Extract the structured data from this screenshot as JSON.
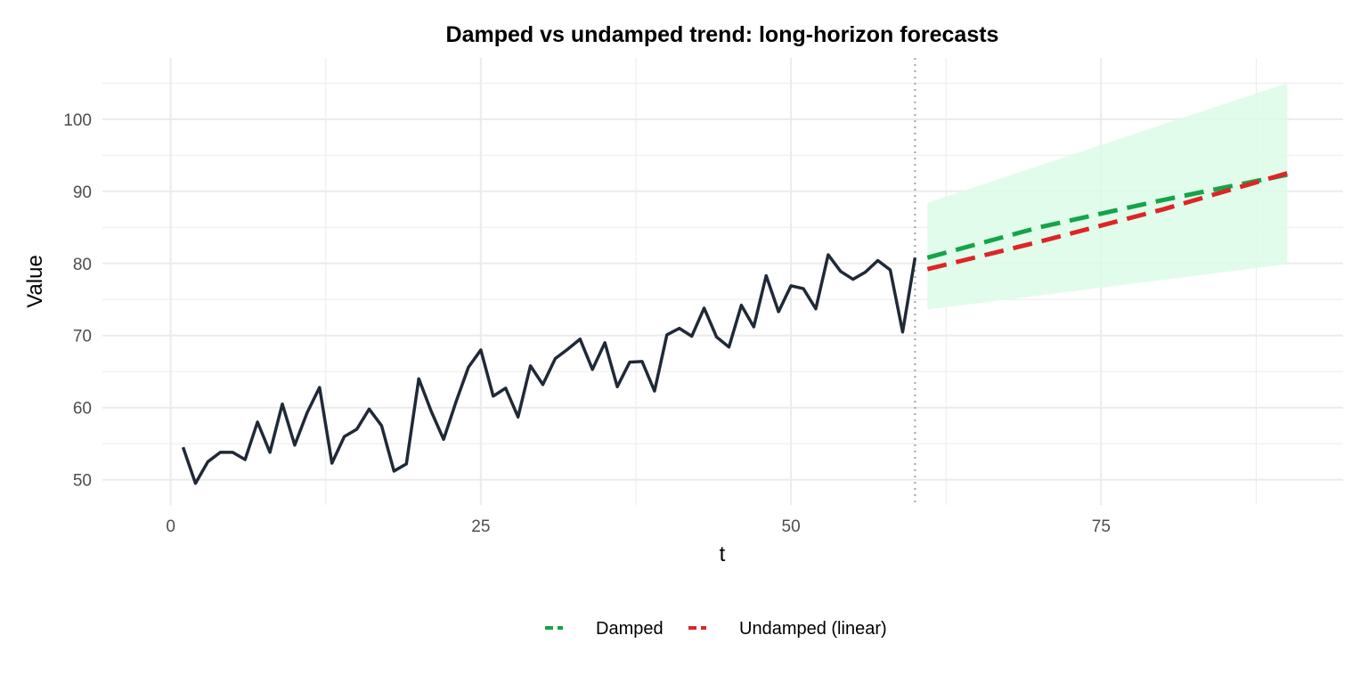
{
  "chart_data": {
    "type": "line",
    "title": "Damped vs undamped trend: long-horizon forecasts",
    "xlabel": "t",
    "ylabel": "Value",
    "xlim": [
      -5.5,
      94.5
    ],
    "ylim": [
      46.5,
      108.5
    ],
    "x_ticks": [
      0,
      25,
      50,
      75
    ],
    "y_ticks": [
      50,
      60,
      70,
      80,
      90,
      100
    ],
    "grid": true,
    "forecast_origin": 60,
    "legend_position": "bottom",
    "colors": {
      "history": "#1f2937",
      "damped": "#16a34a",
      "undamped": "#dc2626",
      "band": "#dcfce7",
      "grid": "#ebebeb",
      "vline": "#9ca3af"
    },
    "history": {
      "x": [
        1,
        2,
        3,
        4,
        5,
        6,
        7,
        8,
        9,
        10,
        11,
        12,
        13,
        14,
        15,
        16,
        17,
        18,
        19,
        20,
        21,
        22,
        23,
        24,
        25,
        26,
        27,
        28,
        29,
        30,
        31,
        32,
        33,
        34,
        35,
        36,
        37,
        38,
        39,
        40,
        41,
        42,
        43,
        44,
        45,
        46,
        47,
        48,
        49,
        50,
        51,
        52,
        53,
        54,
        55,
        56,
        57,
        58,
        59,
        60
      ],
      "y": [
        54.5,
        49.5,
        52.5,
        53.8,
        53.8,
        52.8,
        58,
        53.8,
        60.5,
        54.8,
        59.3,
        62.8,
        52.3,
        56,
        57,
        59.8,
        57.5,
        51.2,
        52.2,
        64,
        59.5,
        55.6,
        60.8,
        65.6,
        68,
        61.6,
        62.7,
        58.7,
        65.8,
        63.2,
        66.8,
        68.1,
        69.5,
        65.3,
        69,
        62.9,
        66.3,
        66.4,
        62.3,
        70.1,
        71,
        69.9,
        73.8,
        69.8,
        68.4,
        74.2,
        71.2,
        78.3,
        73.3,
        76.9,
        76.5,
        73.7,
        81.2,
        78.9,
        77.8,
        78.8,
        80.4,
        79.1,
        70.5,
        80.8
      ]
    },
    "series": [
      {
        "name": "Damped",
        "x": [
          61,
          70,
          80,
          90
        ],
        "values": [
          80.8,
          85,
          88.8,
          92.3
        ]
      },
      {
        "name": "Undamped (linear)",
        "x": [
          61,
          70,
          80,
          90
        ],
        "values": [
          79.2,
          83,
          87.5,
          92.5
        ]
      }
    ],
    "band": {
      "x": [
        61,
        90
      ],
      "lower": [
        73.6,
        79.9
      ],
      "upper": [
        88.4,
        105
      ]
    }
  }
}
